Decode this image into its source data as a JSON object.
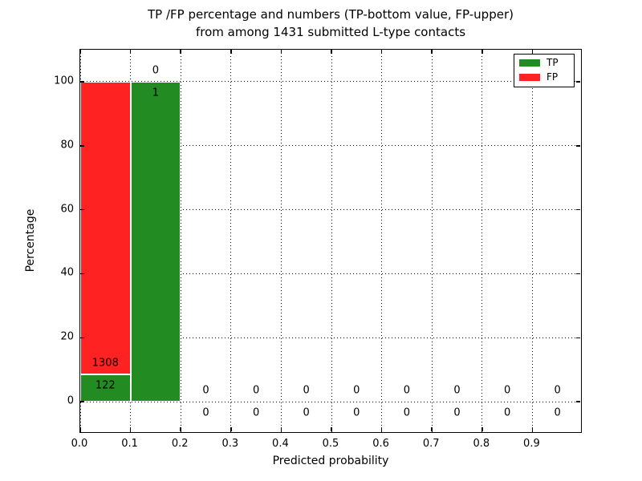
{
  "chart": {
    "title_line1": "TP /FP percentage and numbers (TP-bottom value, FP-upper)",
    "title_line2": "from among 1431 submitted L-type contacts",
    "xlabel": "Predicted probability",
    "ylabel": "Percentage",
    "legend": [
      {
        "label": "TP",
        "color": "#228b22"
      },
      {
        "label": "FP",
        "color": "#ff2222"
      }
    ]
  },
  "chart_data": {
    "type": "bar",
    "stacked": true,
    "title": "TP /FP percentage and numbers (TP-bottom value, FP-upper) from among 1431 submitted L-type contacts",
    "xlabel": "Predicted probability",
    "ylabel": "Percentage",
    "total_contacts": 1431,
    "xlim": [
      0.0,
      1.0
    ],
    "ylim": [
      -10,
      110
    ],
    "xticks": [
      0.0,
      0.1,
      0.2,
      0.3,
      0.4,
      0.5,
      0.6,
      0.7,
      0.8,
      0.9
    ],
    "xtick_labels": [
      "0.0",
      "0.1",
      "0.2",
      "0.3",
      "0.4",
      "0.5",
      "0.6",
      "0.7",
      "0.8",
      "0.9"
    ],
    "yticks": [
      0,
      20,
      40,
      60,
      80,
      100
    ],
    "ytick_labels": [
      "0",
      "20",
      "40",
      "60",
      "80",
      "100"
    ],
    "grid": true,
    "legend_position": "upper right",
    "series": [
      {
        "name": "TP",
        "color": "#228b22"
      },
      {
        "name": "FP",
        "color": "#ff2222"
      }
    ],
    "bins": [
      {
        "range": [
          0.0,
          0.1
        ],
        "tp_count": 122,
        "fp_count": 1308,
        "tp_percent": 8.53,
        "fp_percent": 91.47
      },
      {
        "range": [
          0.1,
          0.2
        ],
        "tp_count": 1,
        "fp_count": 0,
        "tp_percent": 100,
        "fp_percent": 0
      },
      {
        "range": [
          0.2,
          0.3
        ],
        "tp_count": 0,
        "fp_count": 0,
        "tp_percent": 0,
        "fp_percent": 0
      },
      {
        "range": [
          0.3,
          0.4
        ],
        "tp_count": 0,
        "fp_count": 0,
        "tp_percent": 0,
        "fp_percent": 0
      },
      {
        "range": [
          0.4,
          0.5
        ],
        "tp_count": 0,
        "fp_count": 0,
        "tp_percent": 0,
        "fp_percent": 0
      },
      {
        "range": [
          0.5,
          0.6
        ],
        "tp_count": 0,
        "fp_count": 0,
        "tp_percent": 0,
        "fp_percent": 0
      },
      {
        "range": [
          0.6,
          0.7
        ],
        "tp_count": 0,
        "fp_count": 0,
        "tp_percent": 0,
        "fp_percent": 0
      },
      {
        "range": [
          0.7,
          0.8
        ],
        "tp_count": 0,
        "fp_count": 0,
        "tp_percent": 0,
        "fp_percent": 0
      },
      {
        "range": [
          0.8,
          0.9
        ],
        "tp_count": 0,
        "fp_count": 0,
        "tp_percent": 0,
        "fp_percent": 0
      },
      {
        "range": [
          0.9,
          1.0
        ],
        "tp_count": 0,
        "fp_count": 0,
        "tp_percent": 0,
        "fp_percent": 0
      }
    ],
    "label_offset_percent": 3.6
  }
}
